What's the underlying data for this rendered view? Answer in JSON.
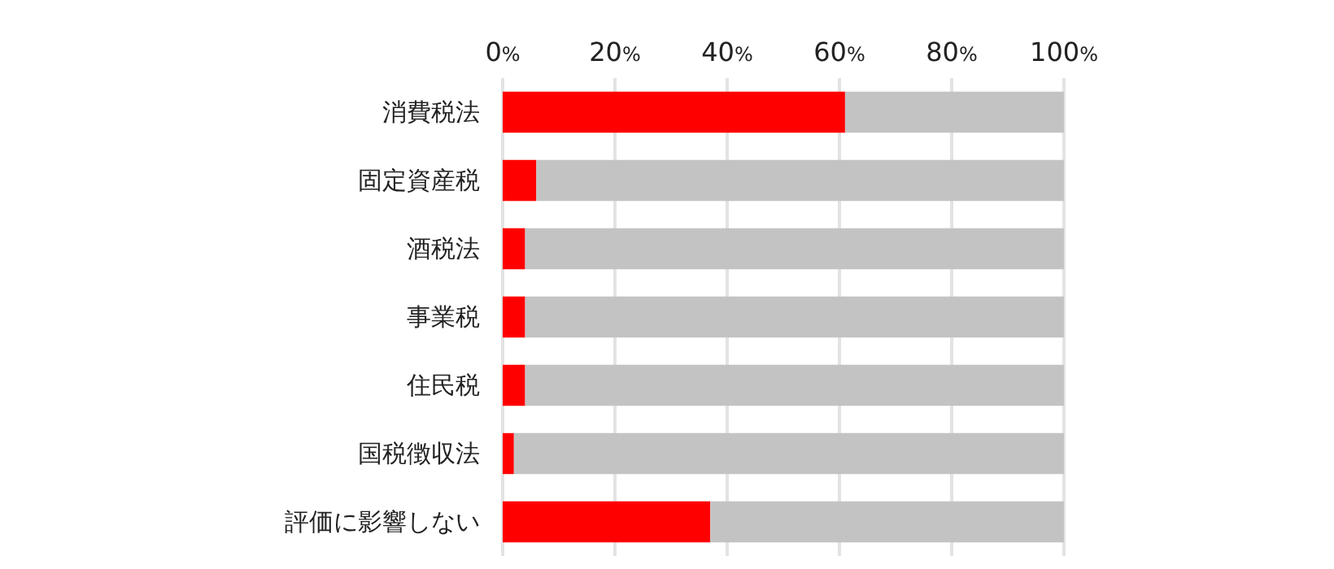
{
  "chart_data": {
    "type": "bar",
    "orientation": "horizontal",
    "stacked": true,
    "categories": [
      "消費税法",
      "固定資産税",
      "酒税法",
      "事業税",
      "住民税",
      "国税徴収法",
      "評価に影響しない"
    ],
    "series": [
      {
        "color": "#ff0000",
        "values": [
          61,
          6,
          4,
          4,
          4,
          2,
          37
        ]
      },
      {
        "color": "#c4c3c4",
        "values": [
          39,
          94,
          96,
          96,
          96,
          98,
          63
        ]
      }
    ],
    "xlim": [
      0,
      100
    ],
    "xticks": [
      {
        "value": 0,
        "label": "0%"
      },
      {
        "value": 20,
        "label": "20%"
      },
      {
        "value": 40,
        "label": "40%"
      },
      {
        "value": 60,
        "label": "60%"
      },
      {
        "value": 80,
        "label": "80%"
      },
      {
        "value": 100,
        "label": "100%"
      }
    ],
    "grid": "x"
  }
}
